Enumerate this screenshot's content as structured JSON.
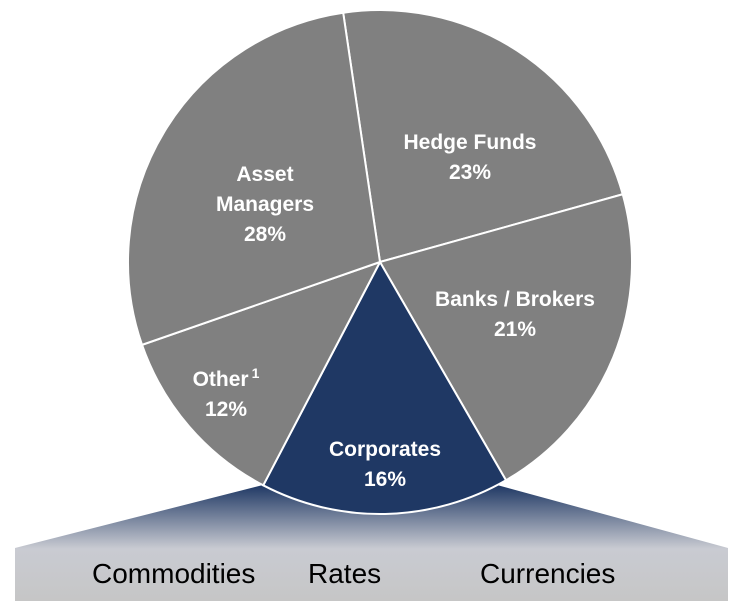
{
  "chart_data": {
    "type": "pie",
    "categories": [
      "Hedge Funds",
      "Banks / Brokers",
      "Corporates",
      "Other",
      "Asset Managers"
    ],
    "values": [
      23,
      21,
      16,
      12,
      28
    ],
    "value_labels": [
      "23%",
      "21%",
      "16%",
      "12%",
      "28%"
    ],
    "label_superscripts": [
      null,
      null,
      null,
      "1",
      null
    ],
    "colors": [
      "#808080",
      "#808080",
      "#1f3864",
      "#808080",
      "#808080"
    ],
    "breakdown": [
      "Commodities",
      "Rates",
      "Currencies"
    ]
  }
}
